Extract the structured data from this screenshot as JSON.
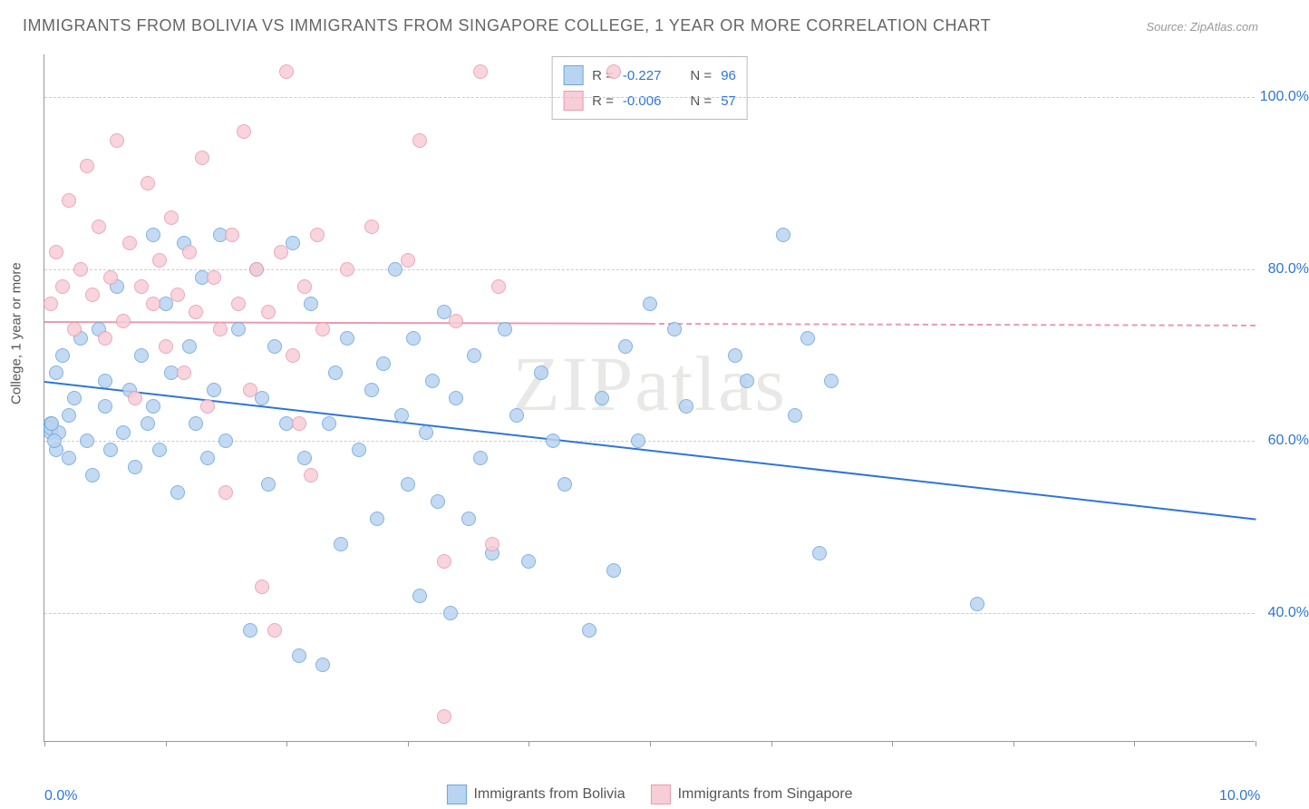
{
  "title": "IMMIGRANTS FROM BOLIVIA VS IMMIGRANTS FROM SINGAPORE COLLEGE, 1 YEAR OR MORE CORRELATION CHART",
  "source": "Source: ZipAtlas.com",
  "ylabel": "College, 1 year or more",
  "watermark_a": "ZIP",
  "watermark_b": "atlas",
  "chart": {
    "type": "scatter",
    "xlim": [
      0,
      10
    ],
    "ylim": [
      25,
      105
    ],
    "xtick_positions": [
      0,
      1,
      2,
      3,
      4,
      5,
      6,
      7,
      8,
      9,
      10
    ],
    "xtick_labels": {
      "0": "0.0%",
      "10": "10.0%"
    },
    "ytick_positions": [
      40,
      60,
      80,
      100
    ],
    "ytick_labels": [
      "40.0%",
      "60.0%",
      "80.0%",
      "100.0%"
    ],
    "grid_color": "#cccccc",
    "background_color": "#ffffff",
    "axis_color": "#999999",
    "tick_label_color": "#2e75d6",
    "marker_radius": 8,
    "marker_stroke_width": 1.5,
    "series": [
      {
        "name": "Immigrants from Bolivia",
        "fill": "#b9d4f0",
        "stroke": "#6ea6de",
        "R": "-0.227",
        "N": "96",
        "trend": {
          "x1": 0,
          "y1": 67,
          "x2": 10,
          "y2": 51,
          "color": "#2e75d6",
          "solid_until": 10
        },
        "points": [
          [
            0.05,
            61
          ],
          [
            0.05,
            62
          ],
          [
            0.1,
            68
          ],
          [
            0.1,
            59
          ],
          [
            0.15,
            70
          ],
          [
            0.2,
            63
          ],
          [
            0.2,
            58
          ],
          [
            0.25,
            65
          ],
          [
            0.3,
            72
          ],
          [
            0.35,
            60
          ],
          [
            0.4,
            56
          ],
          [
            0.45,
            73
          ],
          [
            0.5,
            64
          ],
          [
            0.5,
            67
          ],
          [
            0.55,
            59
          ],
          [
            0.6,
            78
          ],
          [
            0.65,
            61
          ],
          [
            0.7,
            66
          ],
          [
            0.75,
            57
          ],
          [
            0.8,
            70
          ],
          [
            0.85,
            62
          ],
          [
            0.9,
            84
          ],
          [
            0.9,
            64
          ],
          [
            0.95,
            59
          ],
          [
            1.0,
            76
          ],
          [
            1.05,
            68
          ],
          [
            1.1,
            54
          ],
          [
            1.15,
            83
          ],
          [
            1.2,
            71
          ],
          [
            1.25,
            62
          ],
          [
            1.3,
            79
          ],
          [
            1.35,
            58
          ],
          [
            1.4,
            66
          ],
          [
            1.45,
            84
          ],
          [
            1.5,
            60
          ],
          [
            1.6,
            73
          ],
          [
            1.7,
            38
          ],
          [
            1.75,
            80
          ],
          [
            1.8,
            65
          ],
          [
            1.85,
            55
          ],
          [
            1.9,
            71
          ],
          [
            2.0,
            62
          ],
          [
            2.05,
            83
          ],
          [
            2.1,
            35
          ],
          [
            2.15,
            58
          ],
          [
            2.2,
            76
          ],
          [
            2.3,
            34
          ],
          [
            2.35,
            62
          ],
          [
            2.4,
            68
          ],
          [
            2.45,
            48
          ],
          [
            2.5,
            72
          ],
          [
            2.6,
            59
          ],
          [
            2.7,
            66
          ],
          [
            2.75,
            51
          ],
          [
            2.8,
            69
          ],
          [
            2.9,
            80
          ],
          [
            2.95,
            63
          ],
          [
            3.0,
            55
          ],
          [
            3.05,
            72
          ],
          [
            3.1,
            42
          ],
          [
            3.15,
            61
          ],
          [
            3.2,
            67
          ],
          [
            3.25,
            53
          ],
          [
            3.3,
            75
          ],
          [
            3.35,
            40
          ],
          [
            3.4,
            65
          ],
          [
            3.5,
            51
          ],
          [
            3.55,
            70
          ],
          [
            3.6,
            58
          ],
          [
            3.7,
            47
          ],
          [
            3.8,
            73
          ],
          [
            3.9,
            63
          ],
          [
            4.0,
            46
          ],
          [
            4.1,
            68
          ],
          [
            4.2,
            60
          ],
          [
            4.3,
            55
          ],
          [
            4.5,
            38
          ],
          [
            4.6,
            65
          ],
          [
            4.7,
            45
          ],
          [
            4.8,
            71
          ],
          [
            4.9,
            60
          ],
          [
            5.0,
            76
          ],
          [
            5.2,
            73
          ],
          [
            5.3,
            64
          ],
          [
            5.8,
            67
          ],
          [
            5.7,
            70
          ],
          [
            6.1,
            84
          ],
          [
            6.2,
            63
          ],
          [
            6.3,
            72
          ],
          [
            6.4,
            47
          ],
          [
            6.5,
            67
          ],
          [
            7.7,
            41
          ],
          [
            0.05,
            61.5
          ],
          [
            0.12,
            61
          ],
          [
            0.08,
            60
          ],
          [
            0.06,
            62
          ]
        ]
      },
      {
        "name": "Immigrants from Singapore",
        "fill": "#f7cdd8",
        "stroke": "#e99ab2",
        "R": "-0.006",
        "N": "57",
        "trend": {
          "x1": 0,
          "y1": 74,
          "x2": 10,
          "y2": 73.6,
          "color": "#e99ab2",
          "solid_until": 5
        },
        "points": [
          [
            0.05,
            76
          ],
          [
            0.1,
            82
          ],
          [
            0.15,
            78
          ],
          [
            0.2,
            88
          ],
          [
            0.25,
            73
          ],
          [
            0.3,
            80
          ],
          [
            0.35,
            92
          ],
          [
            0.4,
            77
          ],
          [
            0.45,
            85
          ],
          [
            0.5,
            72
          ],
          [
            0.55,
            79
          ],
          [
            0.6,
            95
          ],
          [
            0.65,
            74
          ],
          [
            0.7,
            83
          ],
          [
            0.75,
            65
          ],
          [
            0.8,
            78
          ],
          [
            0.85,
            90
          ],
          [
            0.9,
            76
          ],
          [
            0.95,
            81
          ],
          [
            1.0,
            71
          ],
          [
            1.05,
            86
          ],
          [
            1.1,
            77
          ],
          [
            1.15,
            68
          ],
          [
            1.2,
            82
          ],
          [
            1.25,
            75
          ],
          [
            1.3,
            93
          ],
          [
            1.35,
            64
          ],
          [
            1.4,
            79
          ],
          [
            1.45,
            73
          ],
          [
            1.5,
            54
          ],
          [
            1.55,
            84
          ],
          [
            1.6,
            76
          ],
          [
            1.65,
            96
          ],
          [
            1.7,
            66
          ],
          [
            1.75,
            80
          ],
          [
            1.8,
            43
          ],
          [
            1.85,
            75
          ],
          [
            1.9,
            38
          ],
          [
            1.95,
            82
          ],
          [
            2.0,
            103
          ],
          [
            2.05,
            70
          ],
          [
            2.1,
            62
          ],
          [
            2.15,
            78
          ],
          [
            2.2,
            56
          ],
          [
            2.25,
            84
          ],
          [
            2.3,
            73
          ],
          [
            2.5,
            80
          ],
          [
            2.7,
            85
          ],
          [
            3.0,
            81
          ],
          [
            3.1,
            95
          ],
          [
            3.3,
            46
          ],
          [
            3.4,
            74
          ],
          [
            3.6,
            103
          ],
          [
            3.7,
            48
          ],
          [
            3.75,
            78
          ],
          [
            3.3,
            28
          ],
          [
            4.7,
            103
          ]
        ]
      }
    ]
  },
  "legend_top": {
    "rows": [
      {
        "swatch_fill": "#b9d4f0",
        "swatch_stroke": "#6ea6de",
        "r_label": "R =",
        "r_val": "-0.227",
        "n_label": "N =",
        "n_val": "96"
      },
      {
        "swatch_fill": "#f7cdd8",
        "swatch_stroke": "#e99ab2",
        "r_label": "R =",
        "r_val": "-0.006",
        "n_label": "N =",
        "n_val": "57"
      }
    ]
  },
  "legend_bottom": [
    {
      "swatch_fill": "#b9d4f0",
      "swatch_stroke": "#6ea6de",
      "label": "Immigrants from Bolivia"
    },
    {
      "swatch_fill": "#f7cdd8",
      "swatch_stroke": "#e99ab2",
      "label": "Immigrants from Singapore"
    }
  ]
}
